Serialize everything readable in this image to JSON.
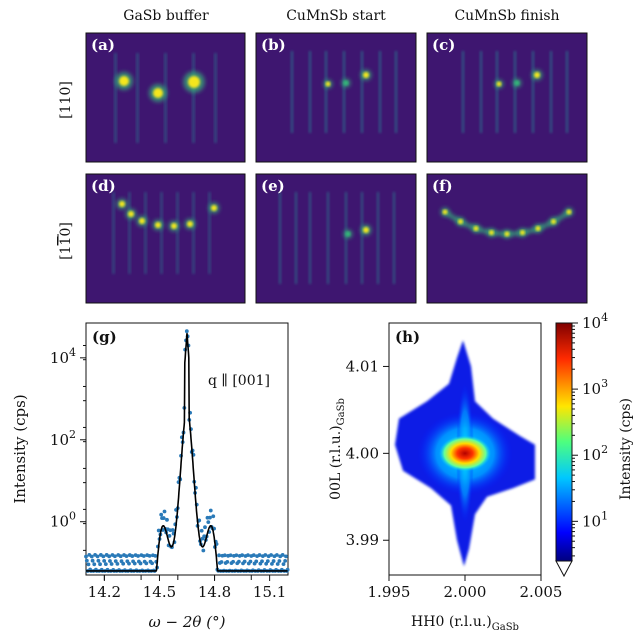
{
  "figure": {
    "columns": [
      "GaSb buffer",
      "CuMnSb start",
      "CuMnSb finish"
    ],
    "row_labels": [
      "[110]",
      "[1̅1̅0]"
    ],
    "row_label_prefix": "[1",
    "row_label_bar": "1",
    "row_label_suffix": "0]",
    "rheed_panels": [
      {
        "letter": "(a)",
        "pattern": "a"
      },
      {
        "letter": "(b)",
        "pattern": "b"
      },
      {
        "letter": "(c)",
        "pattern": "c"
      },
      {
        "letter": "(d)",
        "pattern": "d"
      },
      {
        "letter": "(e)",
        "pattern": "e"
      },
      {
        "letter": "(f)",
        "pattern": "f"
      }
    ],
    "colors": {
      "rheed_bg": "#3e1670",
      "rheed_bright": "#f5e61e",
      "rheed_mid": "#35b779",
      "rheed_faint": "#2c728e",
      "data_points": "#2a7ab8",
      "fit_line": "#000000"
    }
  },
  "chart_data": [
    {
      "panel": "(g)",
      "type": "scatter",
      "annotation": "q ∥ [001]",
      "xlabel": "ω − 2θ (°)",
      "ylabel": "Intensity (cps)",
      "xlim": [
        14.1,
        15.2
      ],
      "ylim_log10": [
        -1.3,
        4.85
      ],
      "yscale": "log",
      "x_ticks": [
        14.2,
        14.4,
        14.6,
        14.8,
        15.0
      ],
      "x_tick_labels": [
        "14.2",
        "14.5",
        "14.8",
        "15.1"
      ],
      "x_tick_label_values": [
        14.2,
        14.5,
        14.8,
        15.1
      ],
      "y_tick_values": [
        0,
        2,
        4
      ],
      "y_tick_base": [
        "10",
        "10",
        "10"
      ],
      "y_tick_exp": [
        "0",
        "2",
        "4"
      ],
      "series": [
        {
          "kind": "points",
          "peak_x": 14.65,
          "peak_log10": 4.7
        },
        {
          "kind": "fit",
          "peak_x": 14.65,
          "peak_log10": 4.6
        }
      ]
    },
    {
      "panel": "(h)",
      "type": "heatmap",
      "xlabel_main": "HH0 (r.l.u.)",
      "xlabel_sub": "GaSb",
      "ylabel_main": "00L (r.l.u.)",
      "ylabel_sub": "GaSb",
      "xlim": [
        1.995,
        2.005
      ],
      "ylim": [
        3.986,
        4.015
      ],
      "x_ticks": [
        1.995,
        2.0,
        2.005
      ],
      "x_tick_labels": [
        "1.995",
        "2.000",
        "2.005"
      ],
      "y_ticks": [
        3.99,
        4.0,
        4.01
      ],
      "y_tick_labels": [
        "3.99",
        "4.00",
        "4.01"
      ],
      "peak": [
        2.0,
        4.0
      ],
      "colorbar": {
        "label": "Intensity (cps)",
        "scale": "log",
        "range_log10": [
          0.4,
          4.0
        ],
        "tick_base": [
          "10",
          "10",
          "10",
          "10"
        ],
        "tick_exp": [
          "1",
          "2",
          "3",
          "4"
        ],
        "tick_values": [
          1,
          2,
          3,
          4
        ]
      }
    }
  ]
}
